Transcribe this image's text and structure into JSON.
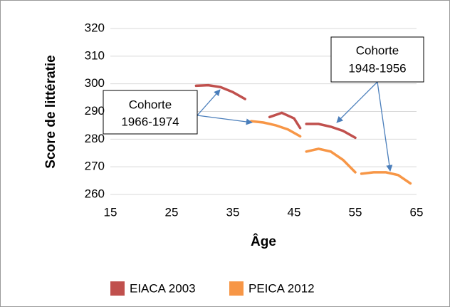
{
  "chart_data": {
    "type": "line",
    "x_label": "Âge",
    "y_label": "Score de littératie",
    "xlim": [
      15,
      65
    ],
    "xticks": [
      15,
      25,
      35,
      45,
      55,
      65
    ],
    "ylim": [
      260,
      320
    ],
    "yticks": [
      260,
      270,
      280,
      290,
      300,
      310,
      320
    ],
    "grid": true,
    "legend": "bottom",
    "series": [
      {
        "name": "EIACA 2003",
        "color": "#c0504d",
        "x": [
          29,
          31,
          33,
          35,
          37,
          null,
          41,
          43,
          45,
          46,
          null,
          47,
          49,
          51,
          53,
          55
        ],
        "values": [
          299.3,
          299.5,
          298.8,
          297,
          294.5,
          null,
          288,
          289.5,
          287.5,
          284,
          null,
          285.5,
          285.5,
          284.5,
          283,
          280.5
        ]
      },
      {
        "name": "PEICA 2012",
        "color": "#f79646",
        "x": [
          38,
          40,
          42,
          44,
          46,
          null,
          47,
          49,
          51,
          53,
          55,
          null,
          56,
          58,
          60,
          62,
          64
        ],
        "values": [
          286.5,
          286,
          285,
          283.5,
          281,
          null,
          275.5,
          276.5,
          275.5,
          272.5,
          268,
          null,
          267.5,
          268,
          268,
          267,
          264
        ]
      }
    ],
    "annotations": [
      {
        "lines": [
          "Cohorte",
          "1966-1974"
        ]
      },
      {
        "lines": [
          "Cohorte",
          "1948-1956"
        ]
      }
    ]
  }
}
